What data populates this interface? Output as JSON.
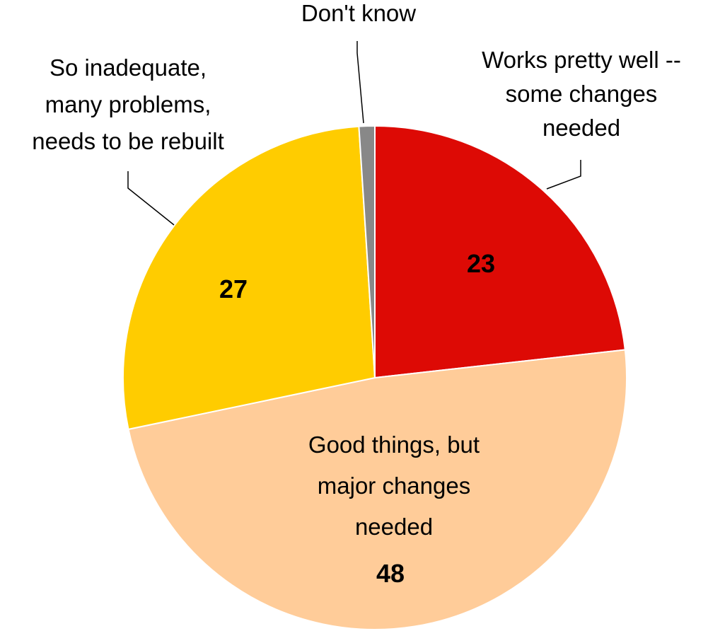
{
  "chart_data": {
    "type": "pie",
    "title": "",
    "start_angle_deg": 0,
    "direction": "clockwise",
    "slices": [
      {
        "label": "Works pretty well -- some changes needed",
        "label_lines": [
          "Works pretty well --",
          "some changes",
          "needed"
        ],
        "value": 23,
        "value_label": "23",
        "color": "#DD0A05"
      },
      {
        "label": "Good things, but major changes needed",
        "label_lines": [
          "Good things, but",
          "major changes",
          "needed"
        ],
        "value": 48,
        "value_label": "48",
        "color": "#FFCC99"
      },
      {
        "label": "So inadequate, many problems, needs to be rebuilt",
        "label_lines": [
          "So inadequate,",
          "many problems,",
          "needs to be rebuilt"
        ],
        "value": 27,
        "value_label": "27",
        "color": "#FFCC00"
      },
      {
        "label": "Don't know",
        "label_lines": [
          "Don't know"
        ],
        "value": 1,
        "value_label": "",
        "color": "#888888"
      }
    ]
  }
}
